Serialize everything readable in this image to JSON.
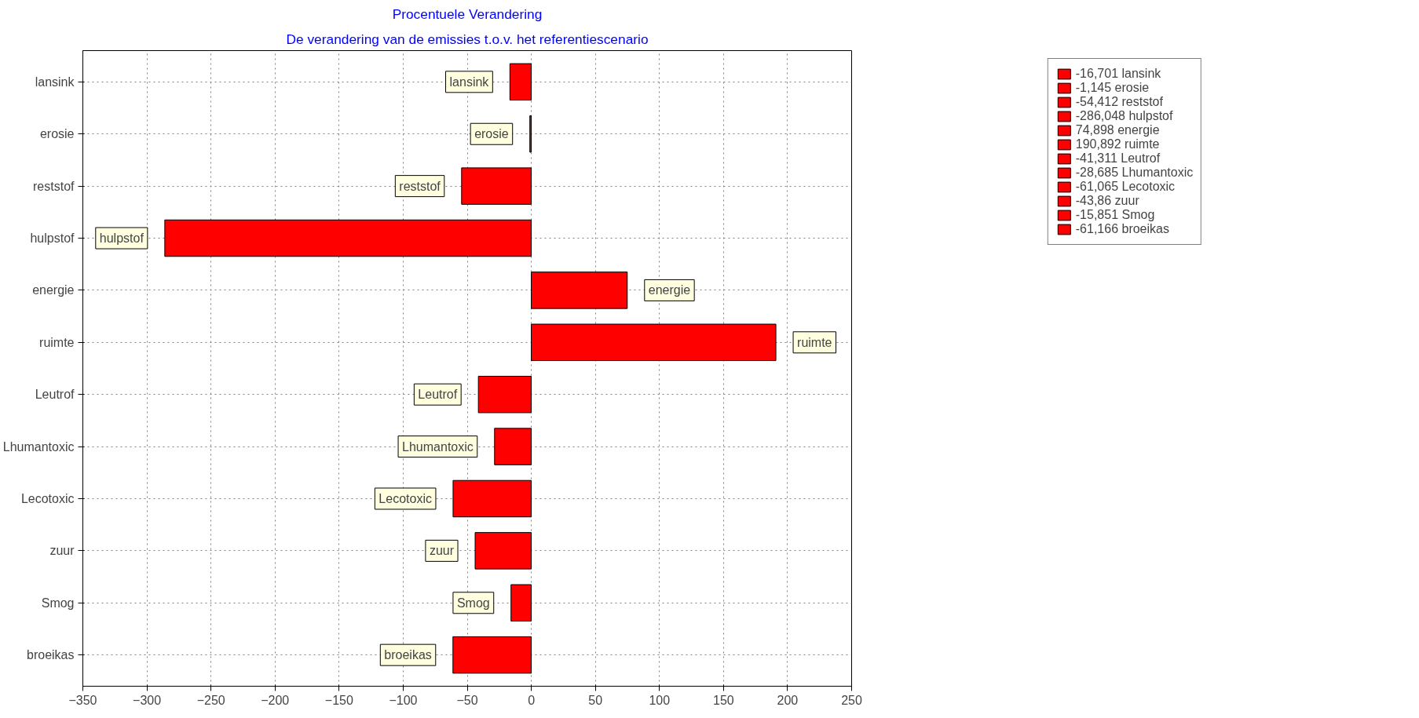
{
  "chart_data": {
    "type": "bar",
    "orientation": "horizontal",
    "title": "Procentuele Verandering",
    "subtitle": "De verandering van de emissies t.o.v. het referentiescenario",
    "categories": [
      "lansink",
      "erosie",
      "reststof",
      "hulpstof",
      "energie",
      "ruimte",
      "Leutrof",
      "Lhumantoxic",
      "Lecotoxic",
      "zuur",
      "Smog",
      "broeikas"
    ],
    "series": [
      {
        "name": "-16,701 lansink",
        "color": "#ff0000",
        "values": [
          -16.701,
          null,
          null,
          null,
          null,
          null,
          null,
          null,
          null,
          null,
          null,
          null
        ]
      },
      {
        "name": "-1,145 erosie",
        "color": "#ff0000",
        "values": [
          null,
          -1.145,
          null,
          null,
          null,
          null,
          null,
          null,
          null,
          null,
          null,
          null
        ]
      },
      {
        "name": "-54,412 reststof",
        "color": "#ff0000",
        "values": [
          null,
          null,
          -54.412,
          null,
          null,
          null,
          null,
          null,
          null,
          null,
          null,
          null
        ]
      },
      {
        "name": "-286,048 hulpstof",
        "color": "#ff0000",
        "values": [
          null,
          null,
          null,
          -286.048,
          null,
          null,
          null,
          null,
          null,
          null,
          null,
          null
        ]
      },
      {
        "name": "74,898 energie",
        "color": "#ff0000",
        "values": [
          null,
          null,
          null,
          null,
          74.898,
          null,
          null,
          null,
          null,
          null,
          null,
          null
        ]
      },
      {
        "name": "190,892 ruimte",
        "color": "#ff0000",
        "values": [
          null,
          null,
          null,
          null,
          null,
          190.892,
          null,
          null,
          null,
          null,
          null,
          null
        ]
      },
      {
        "name": "-41,311 Leutrof",
        "color": "#ff0000",
        "values": [
          null,
          null,
          null,
          null,
          null,
          null,
          -41.311,
          null,
          null,
          null,
          null,
          null
        ]
      },
      {
        "name": "-28,685 Lhumantoxic",
        "color": "#ff0000",
        "values": [
          null,
          null,
          null,
          null,
          null,
          null,
          null,
          -28.685,
          null,
          null,
          null,
          null
        ]
      },
      {
        "name": "-61,065 Lecotoxic",
        "color": "#ff0000",
        "values": [
          null,
          null,
          null,
          null,
          null,
          null,
          null,
          null,
          -61.065,
          null,
          null,
          null
        ]
      },
      {
        "name": "-43,86 zuur",
        "color": "#ff0000",
        "values": [
          null,
          null,
          null,
          null,
          null,
          null,
          null,
          null,
          null,
          -43.86,
          null,
          null
        ]
      },
      {
        "name": "-15,851 Smog",
        "color": "#ff0000",
        "values": [
          null,
          null,
          null,
          null,
          null,
          null,
          null,
          null,
          null,
          null,
          -15.851,
          null
        ]
      },
      {
        "name": "-61,166 broeikas",
        "color": "#ff0000",
        "values": [
          null,
          null,
          null,
          null,
          null,
          null,
          null,
          null,
          null,
          null,
          null,
          -61.166
        ]
      }
    ],
    "xlim": [
      -350,
      250
    ],
    "xticks": [
      -350,
      -300,
      -250,
      -200,
      -150,
      -100,
      -50,
      0,
      50,
      100,
      150,
      200,
      250
    ],
    "grid": true,
    "legend": "top right"
  }
}
